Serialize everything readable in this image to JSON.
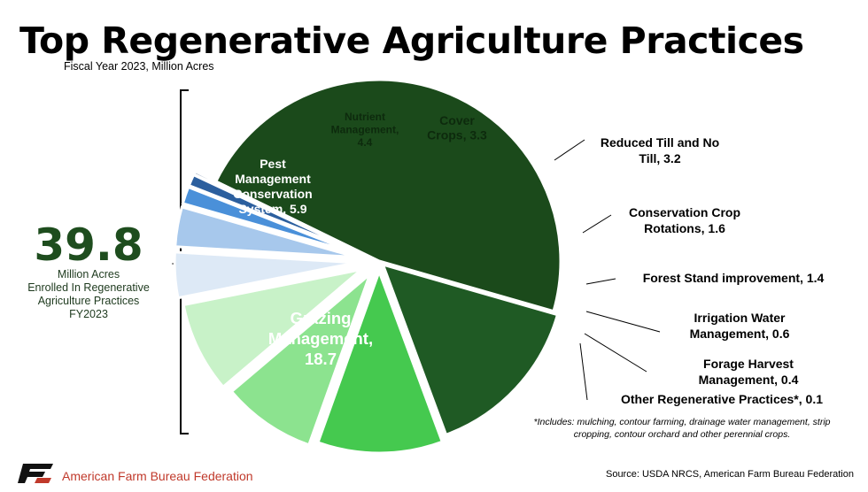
{
  "header": {
    "title": "Top Regenerative Agriculture Practices",
    "subtitle": "Fiscal Year 2023, Million Acres"
  },
  "total": {
    "value": "39.8",
    "caption": [
      "Million Acres",
      "Enrolled In Regenerative",
      "Agriculture Practices",
      "FY2023"
    ]
  },
  "footnote": [
    "*Includes: mulching, contour farming, drainage water management, strip",
    "cropping, contour orchard and other perennial crops."
  ],
  "footer": {
    "org": "American Farm Bureau Federation",
    "source": "Source: USDA NRCS, American Farm Bureau Federation"
  },
  "chart_data": {
    "type": "pie",
    "slices": [
      {
        "label": "Grazing Management, 18.7",
        "value": 18.7,
        "color": "#1b4a1b",
        "text_color": "#ffffff",
        "lines": [
          "Grazing",
          "Management,",
          "18.7"
        ]
      },
      {
        "label": "Pest Management Conservation System, 5.9",
        "value": 5.9,
        "color": "#1f5a24",
        "text_color": "#ffffff",
        "lines": [
          "Pest",
          "Management",
          "Conservation",
          "System, 5.9"
        ]
      },
      {
        "label": "Nutrient Management, 4.4",
        "value": 4.4,
        "color": "#45c94f",
        "text_color": "#0d2a0d",
        "lines": [
          "Nutrient",
          "Management,",
          "4.4"
        ]
      },
      {
        "label": "Cover Crops, 3.3",
        "value": 3.3,
        "color": "#8ce38f",
        "text_color": "#0d2a0d",
        "lines": [
          "Cover",
          "Crops, 3.3"
        ]
      },
      {
        "label": "Reduced Till and No Till, 3.2",
        "value": 3.2,
        "color": "#c8f2c8",
        "lines": [
          "Reduced Till and No",
          "Till, 3.2"
        ]
      },
      {
        "label": "Conservation Crop Rotations, 1.6",
        "value": 1.6,
        "color": "#dde9f6",
        "lines": [
          "Conservation Crop",
          "Rotations, 1.6"
        ]
      },
      {
        "label": "Forest Stand improvement, 1.4",
        "value": 1.4,
        "color": "#a7c8ec",
        "lines": [
          "Forest Stand improvement, 1.4"
        ]
      },
      {
        "label": "Irrigation Water Management, 0.6",
        "value": 0.6,
        "color": "#4a90d9",
        "lines": [
          "Irrigation Water",
          "Management, 0.6"
        ]
      },
      {
        "label": "Forage Harvest Management, 0.4",
        "value": 0.4,
        "color": "#2c5f9e",
        "lines": [
          "Forage Harvest",
          "Management, 0.4"
        ]
      },
      {
        "label": "Other Regenerative Practices*, 0.1",
        "value": 0.1,
        "color": "#1d3f6e",
        "lines": [
          "Other Regenerative Practices*, 0.1"
        ]
      }
    ]
  }
}
